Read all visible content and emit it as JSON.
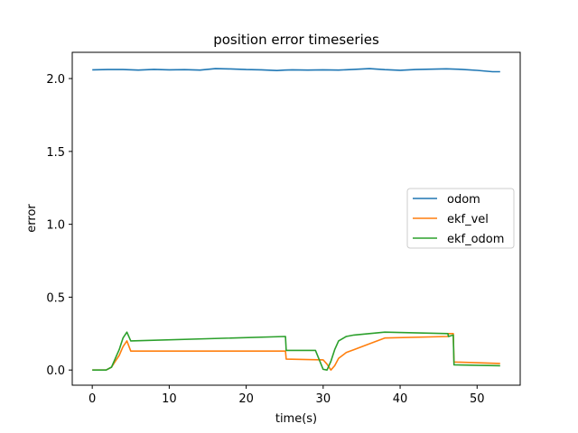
{
  "chart_data": {
    "type": "line",
    "title": "position error timeseries",
    "xlabel": "time(s)",
    "ylabel": "error",
    "xlim": [
      -2.6,
      55.6
    ],
    "ylim": [
      -0.104,
      2.18
    ],
    "xticks": [
      0,
      10,
      20,
      30,
      40,
      50
    ],
    "xtick_labels": [
      "0",
      "10",
      "20",
      "30",
      "40",
      "50"
    ],
    "yticks": [
      0.0,
      0.5,
      1.0,
      1.5,
      2.0
    ],
    "ytick_labels": [
      "0.0",
      "0.5",
      "1.0",
      "1.5",
      "2.0"
    ],
    "grid": false,
    "legend_position": "center-right",
    "series": [
      {
        "name": "odom",
        "color": "#1f77b4",
        "x": [
          0,
          2,
          4,
          6,
          8,
          10,
          12,
          14,
          16,
          18,
          20,
          22,
          24,
          25,
          26,
          28,
          30,
          32,
          34,
          36,
          38,
          40,
          42,
          44,
          46,
          48,
          50,
          52,
          53
        ],
        "y": [
          2.06,
          2.062,
          2.062,
          2.058,
          2.063,
          2.06,
          2.061,
          2.058,
          2.068,
          2.066,
          2.062,
          2.06,
          2.055,
          2.058,
          2.06,
          2.058,
          2.06,
          2.058,
          2.063,
          2.068,
          2.061,
          2.057,
          2.062,
          2.064,
          2.067,
          2.063,
          2.056,
          2.047,
          2.047
        ]
      },
      {
        "name": "ekf_vel",
        "color": "#ff7f0e",
        "x": [
          0,
          1.8,
          2.5,
          3.0,
          3.5,
          4.0,
          4.5,
          5.0,
          25.1,
          25.2,
          30.0,
          30.5,
          31.0,
          31.5,
          32.0,
          33.0,
          34.0,
          38.0,
          46.2,
          46.3,
          46.9,
          47.0,
          53.0
        ],
        "y": [
          0.0,
          0.0,
          0.02,
          0.06,
          0.1,
          0.16,
          0.2,
          0.13,
          0.13,
          0.075,
          0.07,
          0.04,
          0.0,
          0.03,
          0.08,
          0.12,
          0.14,
          0.22,
          0.23,
          0.25,
          0.25,
          0.055,
          0.045
        ]
      },
      {
        "name": "ekf_odom",
        "color": "#2ca02c",
        "x": [
          0,
          1.8,
          2.5,
          3.0,
          3.5,
          4.0,
          4.5,
          5.0,
          25.1,
          25.2,
          29.0,
          30.0,
          30.5,
          31.0,
          31.5,
          32.0,
          33.0,
          34.0,
          38.0,
          46.2,
          46.3,
          46.9,
          47.0,
          53.0
        ],
        "y": [
          0.0,
          0.0,
          0.02,
          0.08,
          0.14,
          0.22,
          0.26,
          0.2,
          0.23,
          0.135,
          0.135,
          0.005,
          0.0,
          0.06,
          0.14,
          0.2,
          0.23,
          0.24,
          0.26,
          0.25,
          0.23,
          0.24,
          0.035,
          0.03
        ]
      }
    ]
  }
}
